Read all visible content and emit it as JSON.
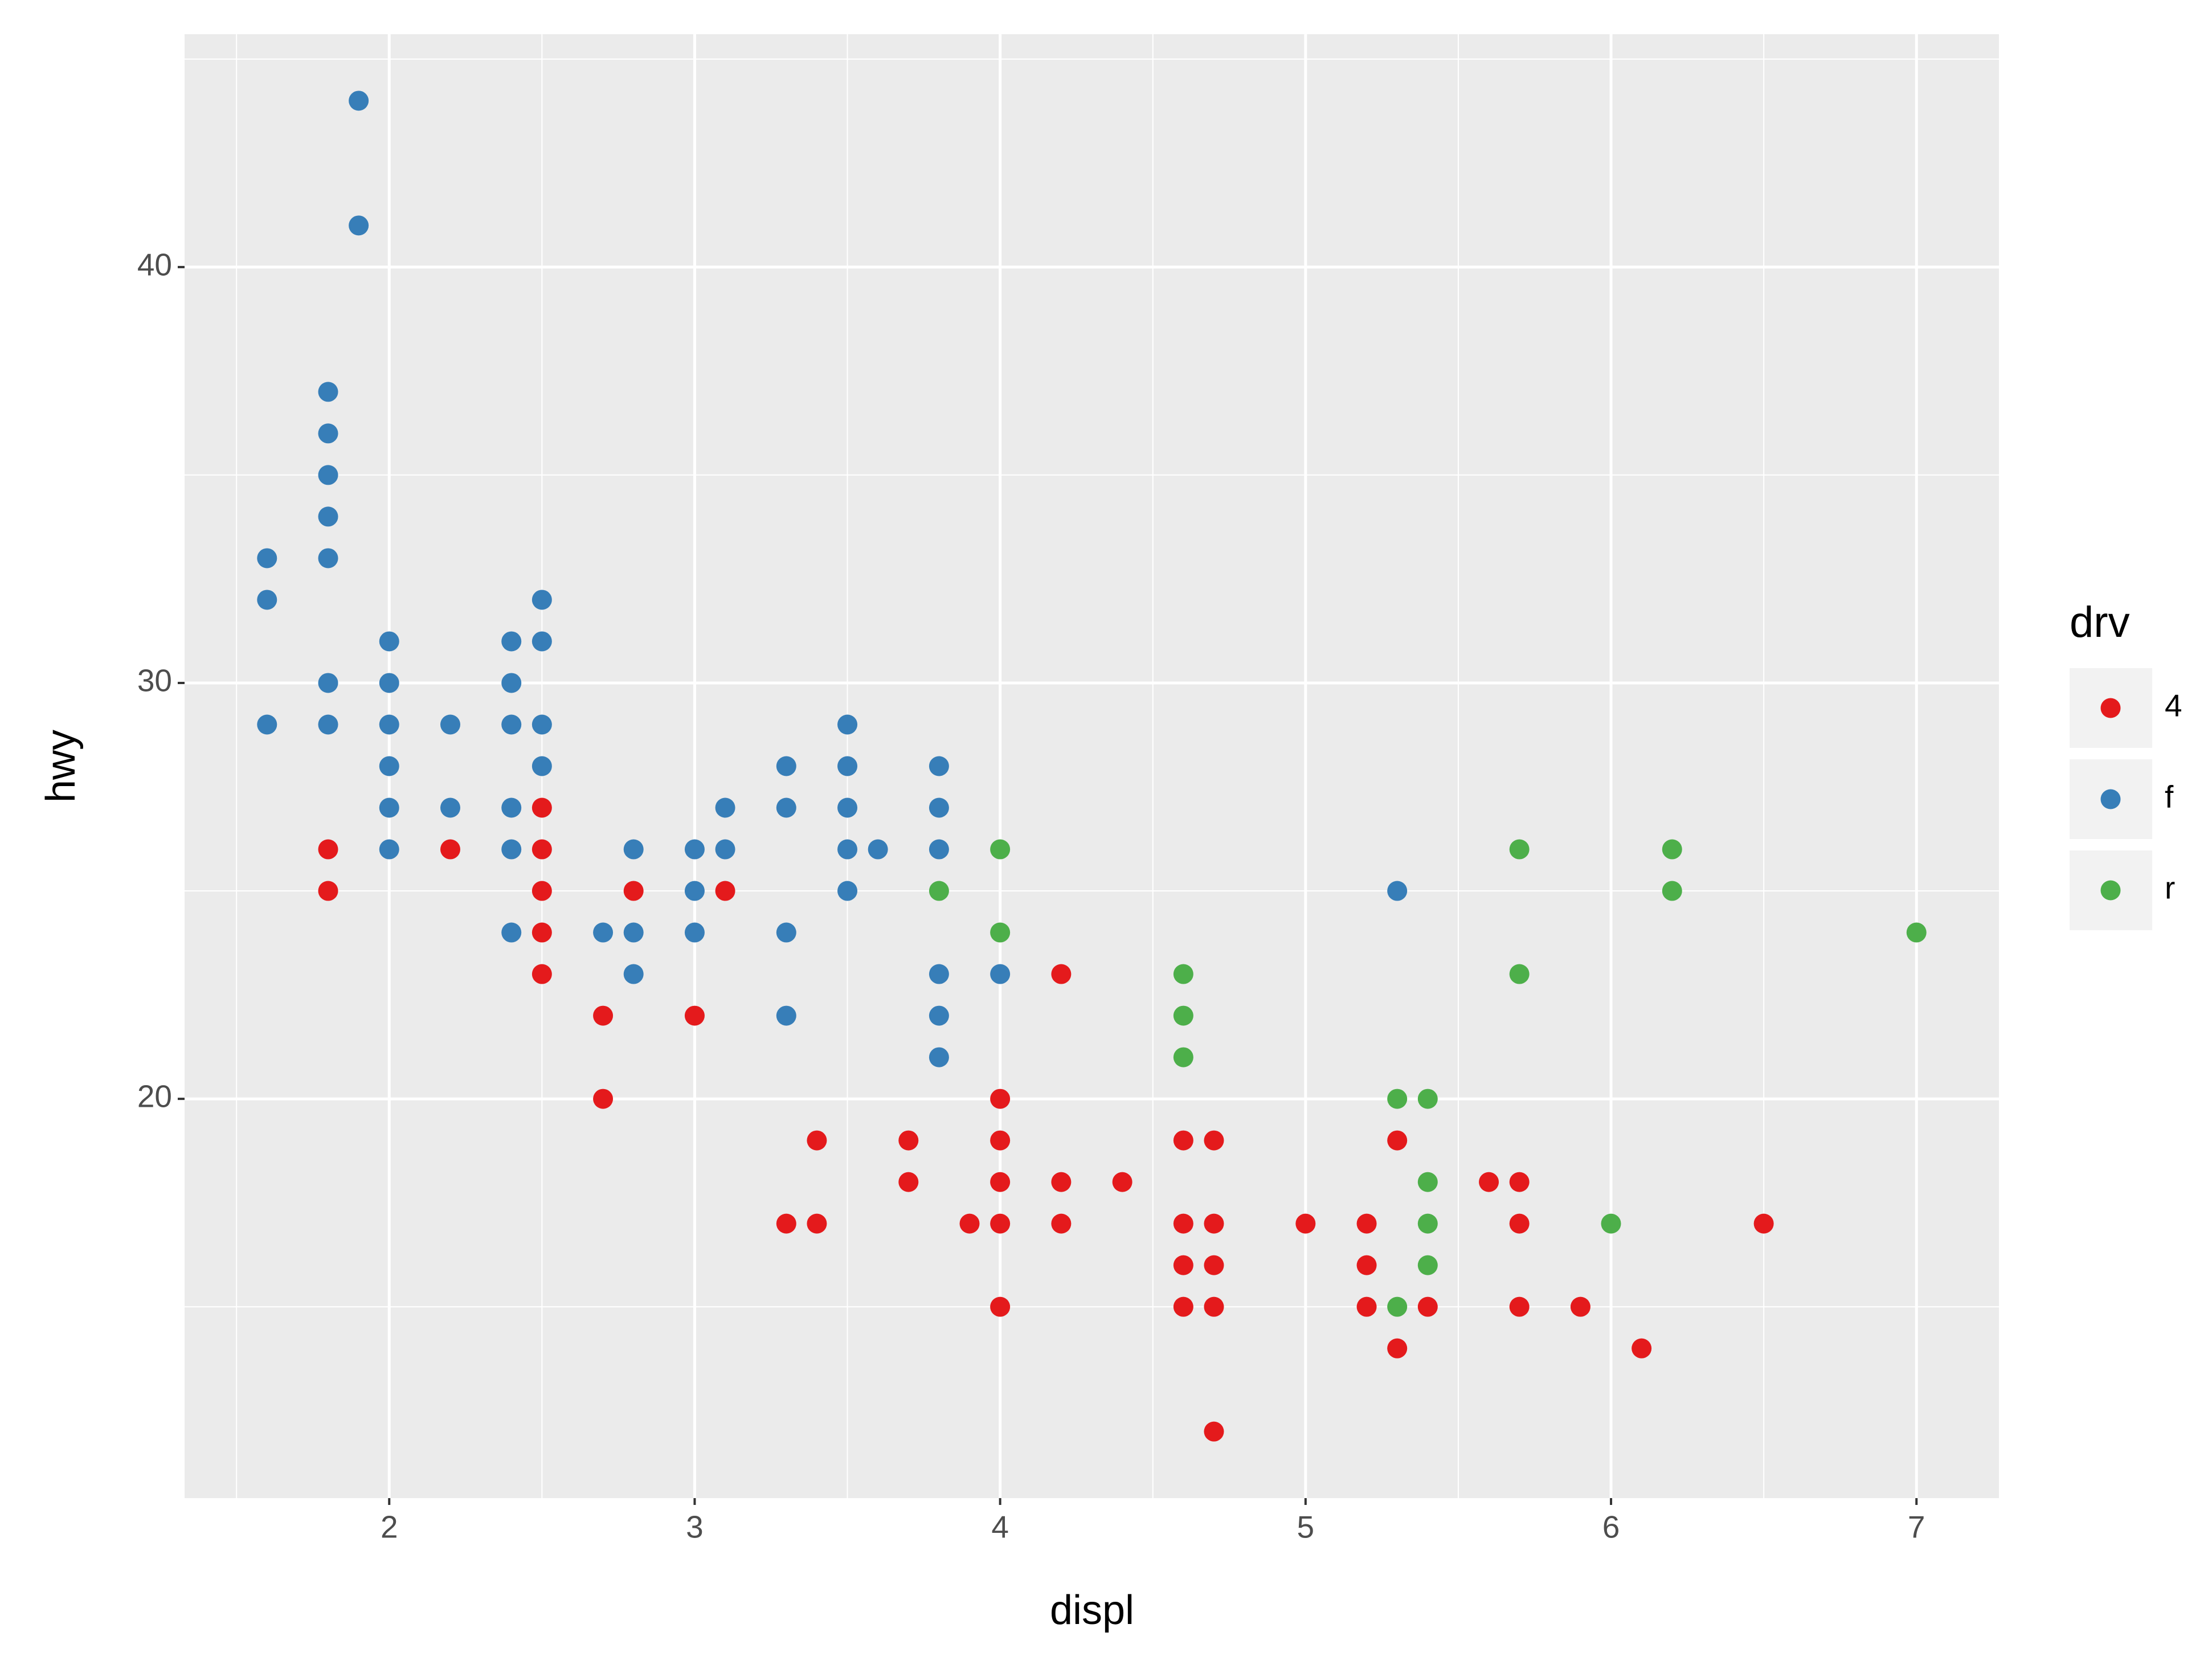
{
  "chart_data": {
    "type": "scatter",
    "x_label": "displ",
    "y_label": "hwy",
    "legend_title": "drv",
    "legend_position": "right",
    "grid": true,
    "xlim": [
      1.33,
      7.27
    ],
    "ylim": [
      10.4,
      45.6
    ],
    "xticks": [
      2,
      3,
      4,
      5,
      6,
      7
    ],
    "yticks": [
      20,
      30,
      40
    ],
    "series": [
      {
        "name": "4",
        "color": "#E41A1C",
        "x": [
          1.8,
          1.8,
          2.2,
          2.5,
          2.5,
          2.5,
          2.5,
          2.5,
          2.7,
          2.7,
          2.8,
          3,
          3.1,
          3.3,
          3.4,
          3.4,
          3.7,
          3.7,
          3.9,
          4,
          4,
          4,
          4,
          4,
          4.2,
          4.2,
          4.2,
          4.4,
          4.6,
          4.6,
          4.6,
          4.6,
          4.7,
          4.7,
          4.7,
          4.7,
          4.7,
          5,
          5.2,
          5.2,
          5.2,
          5.3,
          5.3,
          5.4,
          5.6,
          5.7,
          5.7,
          5.7,
          5.9,
          6.1,
          6.5
        ],
        "values": [
          26,
          25,
          26,
          27,
          26,
          25,
          24,
          23,
          22,
          20,
          25,
          22,
          25,
          17,
          19,
          17,
          19,
          18,
          17,
          20,
          19,
          18,
          17,
          15,
          23,
          18,
          17,
          18,
          19,
          17,
          16,
          15,
          19,
          17,
          16,
          15,
          12,
          17,
          17,
          16,
          15,
          19,
          14,
          15,
          18,
          18,
          17,
          15,
          15,
          14,
          17
        ]
      },
      {
        "name": "f",
        "color": "#377EB8",
        "x": [
          1.6,
          1.6,
          1.6,
          1.8,
          1.8,
          1.8,
          1.8,
          1.8,
          1.8,
          1.8,
          1.9,
          1.9,
          2,
          2,
          2,
          2,
          2,
          2,
          2.2,
          2.2,
          2.4,
          2.4,
          2.4,
          2.4,
          2.4,
          2.4,
          2.5,
          2.5,
          2.5,
          2.5,
          2.7,
          2.8,
          2.8,
          2.8,
          3,
          3,
          3,
          3.1,
          3.1,
          3.3,
          3.3,
          3.3,
          3.3,
          3.5,
          3.5,
          3.5,
          3.5,
          3.5,
          3.6,
          3.8,
          3.8,
          3.8,
          3.8,
          3.8,
          3.8,
          4,
          5.3
        ],
        "values": [
          33,
          32,
          29,
          37,
          36,
          35,
          34,
          33,
          30,
          29,
          44,
          41,
          31,
          30,
          29,
          28,
          27,
          26,
          29,
          27,
          31,
          30,
          29,
          27,
          26,
          24,
          32,
          31,
          29,
          28,
          24,
          26,
          24,
          23,
          26,
          25,
          24,
          27,
          26,
          28,
          27,
          24,
          22,
          29,
          28,
          27,
          26,
          25,
          26,
          28,
          27,
          26,
          23,
          22,
          21,
          23,
          25
        ]
      },
      {
        "name": "r",
        "color": "#4DAF4A",
        "x": [
          3.8,
          4,
          4,
          4.6,
          4.6,
          4.6,
          5.3,
          5.3,
          5.4,
          5.4,
          5.4,
          5.4,
          5.7,
          5.7,
          6,
          6.2,
          6.2,
          7
        ],
        "values": [
          25,
          26,
          24,
          23,
          22,
          21,
          20,
          15,
          20,
          18,
          17,
          16,
          26,
          23,
          17,
          26,
          25,
          24
        ]
      }
    ]
  }
}
